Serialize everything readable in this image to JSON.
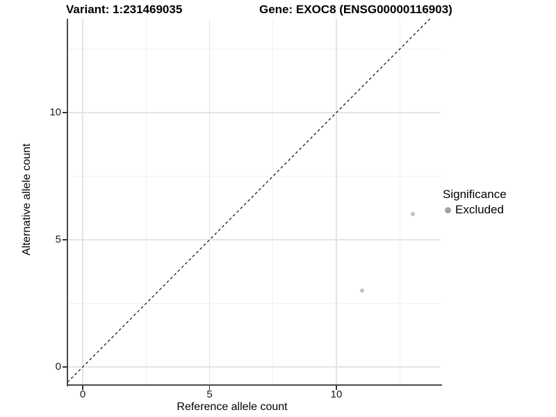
{
  "titles": {
    "variant": "Variant: 1:231469035",
    "gene": "Gene: EXOC8 (ENSG00000116903)"
  },
  "axes": {
    "x": {
      "label": "Reference allele count",
      "tick_labels": [
        "0",
        "5",
        "10"
      ],
      "tick_values": [
        0,
        5,
        10
      ],
      "minor_values": [
        2.5,
        7.5,
        12.5
      ],
      "range": [
        -0.6,
        14.1
      ]
    },
    "y": {
      "label": "Alternative allele count",
      "tick_labels": [
        "0",
        "5",
        "10"
      ],
      "tick_values": [
        0,
        5,
        10
      ],
      "minor_values": [
        2.5,
        7.5,
        12.5
      ],
      "range": [
        -0.71,
        13.69
      ]
    }
  },
  "legend": {
    "title": "Significance",
    "items": [
      {
        "label": "Excluded",
        "color": "#a1a1a1"
      }
    ]
  },
  "chart_data": {
    "type": "scatter",
    "title": "Variant: 1:231469035 | Gene: EXOC8 (ENSG00000116903)",
    "xlabel": "Reference allele count",
    "ylabel": "Alternative allele count",
    "xlim": [
      -0.6,
      14.1
    ],
    "ylim": [
      -0.71,
      13.69
    ],
    "x_ticks": [
      0,
      5,
      10
    ],
    "y_ticks": [
      0,
      5,
      10
    ],
    "grid": true,
    "legend_position": "right",
    "series": [
      {
        "name": "Excluded",
        "color": "#c4c4c4",
        "points": [
          {
            "x": 11,
            "y": 3
          },
          {
            "x": 13,
            "y": 6
          }
        ]
      }
    ],
    "reference_line": {
      "equation": "y = x",
      "style": "dashed",
      "color": "#1a1a1a"
    }
  },
  "style": {
    "grid_major_color": "#e4e4e4",
    "grid_minor_color": "#f0f0f0",
    "axis_line_color": "#4a4a4a",
    "tick_color": "#333333",
    "point_color": "#c4c4c4",
    "legend_key_color": "#a1a1a1",
    "dashed_line_color": "#1a1a1a",
    "background": "#ffffff"
  }
}
